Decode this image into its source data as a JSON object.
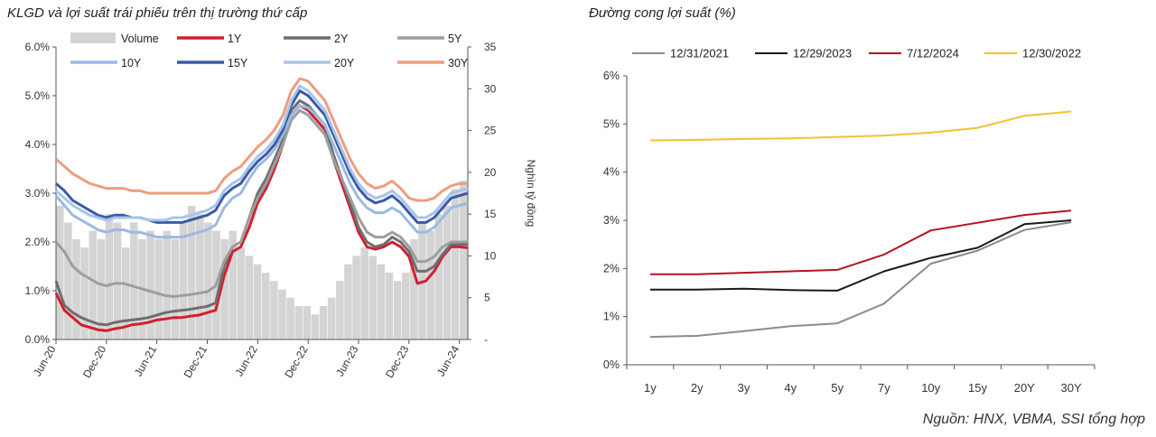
{
  "left_title": "KLGD và lợi suất trái phiếu trên thị trường thứ cấp",
  "right_title": "Đường cong lợi suất (%)",
  "source": "Nguồn: HNX, VBMA, SSI tổng hợp",
  "chart_data": [
    {
      "type": "line",
      "title": "KLGD và lợi suất trái phiếu trên thị trường thứ cấp",
      "ylabel_right": "Nghìn tỷ đồng",
      "ylim_left": [
        0,
        6
      ],
      "ylim_right": [
        0,
        35
      ],
      "yticks_left": [
        "0.0%",
        "1.0%",
        "2.0%",
        "3.0%",
        "4.0%",
        "5.0%",
        "6.0%"
      ],
      "yticks_right": [
        "-",
        "5",
        "10",
        "15",
        "20",
        "25",
        "30",
        "35"
      ],
      "x_ticks": [
        "Jun-20",
        "Dec-20",
        "Jun-21",
        "Dec-21",
        "Jun-22",
        "Dec-22",
        "Jun-23",
        "Dec-23",
        "Jun-24"
      ],
      "x_months": [
        "2020-06",
        "2020-07",
        "2020-08",
        "2020-09",
        "2020-10",
        "2020-11",
        "2020-12",
        "2021-01",
        "2021-02",
        "2021-03",
        "2021-04",
        "2021-05",
        "2021-06",
        "2021-07",
        "2021-08",
        "2021-09",
        "2021-10",
        "2021-11",
        "2021-12",
        "2022-01",
        "2022-02",
        "2022-03",
        "2022-04",
        "2022-05",
        "2022-06",
        "2022-07",
        "2022-08",
        "2022-09",
        "2022-10",
        "2022-11",
        "2022-12",
        "2023-01",
        "2023-02",
        "2023-03",
        "2023-04",
        "2023-05",
        "2023-06",
        "2023-07",
        "2023-08",
        "2023-09",
        "2023-10",
        "2023-11",
        "2023-12",
        "2024-01",
        "2024-02",
        "2024-03",
        "2024-04",
        "2024-05",
        "2024-06",
        "2024-07"
      ],
      "legend": [
        "Volume",
        "1Y",
        "2Y",
        "5Y",
        "10Y",
        "15Y",
        "20Y",
        "30Y"
      ],
      "volume": {
        "name": "Volume",
        "color": "#d4d4d4",
        "values": [
          16,
          14,
          12,
          11,
          13,
          12,
          15,
          14,
          11,
          14,
          12,
          13,
          12,
          13,
          12,
          14,
          16,
          15,
          14,
          13,
          12,
          13,
          11,
          10,
          9,
          8,
          7,
          6,
          5,
          4,
          4,
          3,
          4,
          5,
          7,
          9,
          10,
          11,
          10,
          9,
          8,
          7,
          8,
          12,
          14,
          13,
          15,
          16,
          18,
          19
        ]
      },
      "series": [
        {
          "name": "1Y",
          "color": "#d21f2f",
          "values": [
            0.95,
            0.6,
            0.45,
            0.3,
            0.25,
            0.2,
            0.18,
            0.22,
            0.25,
            0.3,
            0.32,
            0.35,
            0.4,
            0.42,
            0.45,
            0.45,
            0.48,
            0.5,
            0.55,
            0.6,
            1.3,
            1.8,
            1.9,
            2.3,
            2.8,
            3.1,
            3.5,
            4.0,
            4.6,
            4.8,
            4.7,
            4.5,
            4.3,
            3.7,
            3.2,
            2.7,
            2.2,
            1.9,
            1.85,
            1.9,
            2.0,
            1.9,
            1.7,
            1.15,
            1.2,
            1.4,
            1.7,
            1.9,
            1.9,
            1.88
          ]
        },
        {
          "name": "2Y",
          "color": "#6e6e6e",
          "values": [
            1.2,
            0.7,
            0.55,
            0.45,
            0.38,
            0.32,
            0.3,
            0.35,
            0.38,
            0.4,
            0.42,
            0.45,
            0.5,
            0.55,
            0.58,
            0.6,
            0.62,
            0.65,
            0.68,
            0.75,
            1.5,
            1.9,
            2.0,
            2.5,
            3.0,
            3.3,
            3.7,
            4.1,
            4.7,
            4.9,
            4.8,
            4.6,
            4.4,
            3.8,
            3.3,
            2.8,
            2.3,
            2.0,
            1.9,
            1.95,
            2.1,
            2.0,
            1.8,
            1.4,
            1.4,
            1.5,
            1.75,
            1.95,
            1.95,
            1.95
          ]
        },
        {
          "name": "5Y",
          "color": "#9e9e9e",
          "values": [
            2.0,
            1.8,
            1.5,
            1.35,
            1.25,
            1.15,
            1.1,
            1.15,
            1.15,
            1.1,
            1.05,
            1.0,
            0.95,
            0.9,
            0.88,
            0.9,
            0.92,
            0.95,
            0.98,
            1.1,
            1.6,
            1.9,
            2.0,
            2.5,
            2.9,
            3.2,
            3.6,
            4.0,
            4.5,
            4.7,
            4.6,
            4.4,
            4.2,
            3.7,
            3.3,
            2.9,
            2.5,
            2.2,
            2.1,
            2.1,
            2.2,
            2.1,
            1.9,
            1.6,
            1.6,
            1.7,
            1.9,
            2.0,
            2.0,
            2.0
          ]
        },
        {
          "name": "10Y",
          "color": "#9cb9e2",
          "values": [
            2.95,
            2.75,
            2.55,
            2.45,
            2.35,
            2.25,
            2.2,
            2.25,
            2.25,
            2.2,
            2.2,
            2.15,
            2.1,
            2.1,
            2.1,
            2.1,
            2.15,
            2.2,
            2.25,
            2.35,
            2.7,
            2.9,
            3.0,
            3.3,
            3.55,
            3.7,
            3.9,
            4.2,
            4.6,
            4.8,
            4.75,
            4.6,
            4.4,
            4.0,
            3.6,
            3.2,
            2.9,
            2.7,
            2.6,
            2.6,
            2.7,
            2.6,
            2.4,
            2.2,
            2.2,
            2.3,
            2.5,
            2.7,
            2.75,
            2.8
          ]
        },
        {
          "name": "15Y",
          "color": "#3a5aa8",
          "values": [
            3.2,
            3.05,
            2.85,
            2.75,
            2.65,
            2.55,
            2.5,
            2.55,
            2.55,
            2.5,
            2.5,
            2.45,
            2.4,
            2.4,
            2.4,
            2.4,
            2.45,
            2.5,
            2.55,
            2.65,
            2.95,
            3.1,
            3.2,
            3.45,
            3.65,
            3.8,
            4.0,
            4.3,
            4.8,
            5.1,
            5.0,
            4.8,
            4.6,
            4.2,
            3.8,
            3.4,
            3.1,
            2.9,
            2.8,
            2.85,
            2.95,
            2.8,
            2.6,
            2.4,
            2.4,
            2.5,
            2.7,
            2.9,
            2.95,
            3.0
          ]
        },
        {
          "name": "20Y",
          "color": "#a8c4e8",
          "values": [
            3.05,
            2.9,
            2.75,
            2.65,
            2.55,
            2.5,
            2.45,
            2.5,
            2.5,
            2.5,
            2.5,
            2.45,
            2.45,
            2.45,
            2.5,
            2.5,
            2.55,
            2.6,
            2.65,
            2.75,
            3.05,
            3.2,
            3.3,
            3.55,
            3.75,
            3.9,
            4.1,
            4.4,
            4.9,
            5.2,
            5.1,
            4.9,
            4.7,
            4.3,
            3.9,
            3.5,
            3.2,
            3.0,
            2.9,
            2.95,
            3.05,
            2.9,
            2.7,
            2.5,
            2.5,
            2.6,
            2.8,
            3.0,
            3.05,
            3.1
          ]
        },
        {
          "name": "30Y",
          "color": "#ee9d7e",
          "values": [
            3.7,
            3.55,
            3.4,
            3.3,
            3.2,
            3.15,
            3.1,
            3.1,
            3.1,
            3.05,
            3.05,
            3.0,
            3.0,
            3.0,
            3.0,
            3.0,
            3.0,
            3.0,
            3.0,
            3.05,
            3.3,
            3.45,
            3.55,
            3.75,
            3.95,
            4.1,
            4.3,
            4.6,
            5.1,
            5.35,
            5.3,
            5.1,
            4.9,
            4.5,
            4.1,
            3.7,
            3.4,
            3.2,
            3.1,
            3.15,
            3.25,
            3.1,
            2.9,
            2.85,
            2.85,
            2.9,
            3.05,
            3.15,
            3.2,
            3.2
          ]
        }
      ]
    },
    {
      "type": "line",
      "title": "Đường cong lợi suất (%)",
      "categories": [
        "1y",
        "2y",
        "3y",
        "4y",
        "5y",
        "7y",
        "10y",
        "15y",
        "20Y",
        "30Y"
      ],
      "ylim": [
        0,
        6
      ],
      "yticks": [
        "0%",
        "1%",
        "2%",
        "3%",
        "4%",
        "5%",
        "6%"
      ],
      "series": [
        {
          "name": "12/31/2021",
          "color": "#8c8c8c",
          "values": [
            0.58,
            0.6,
            0.7,
            0.8,
            0.86,
            1.27,
            2.1,
            2.37,
            2.8,
            2.96
          ]
        },
        {
          "name": "12/29/2023",
          "color": "#1a1a1a",
          "values": [
            1.56,
            1.56,
            1.58,
            1.55,
            1.54,
            1.94,
            2.22,
            2.43,
            2.92,
            3.0
          ]
        },
        {
          "name": "7/12/2024",
          "color": "#b3131f",
          "values": [
            1.88,
            1.88,
            1.91,
            1.94,
            1.97,
            2.29,
            2.79,
            2.95,
            3.11,
            3.2
          ]
        },
        {
          "name": "12/30/2022",
          "color": "#f2c12e",
          "values": [
            4.66,
            4.67,
            4.69,
            4.7,
            4.73,
            4.76,
            4.82,
            4.92,
            5.17,
            5.26
          ]
        }
      ]
    }
  ]
}
